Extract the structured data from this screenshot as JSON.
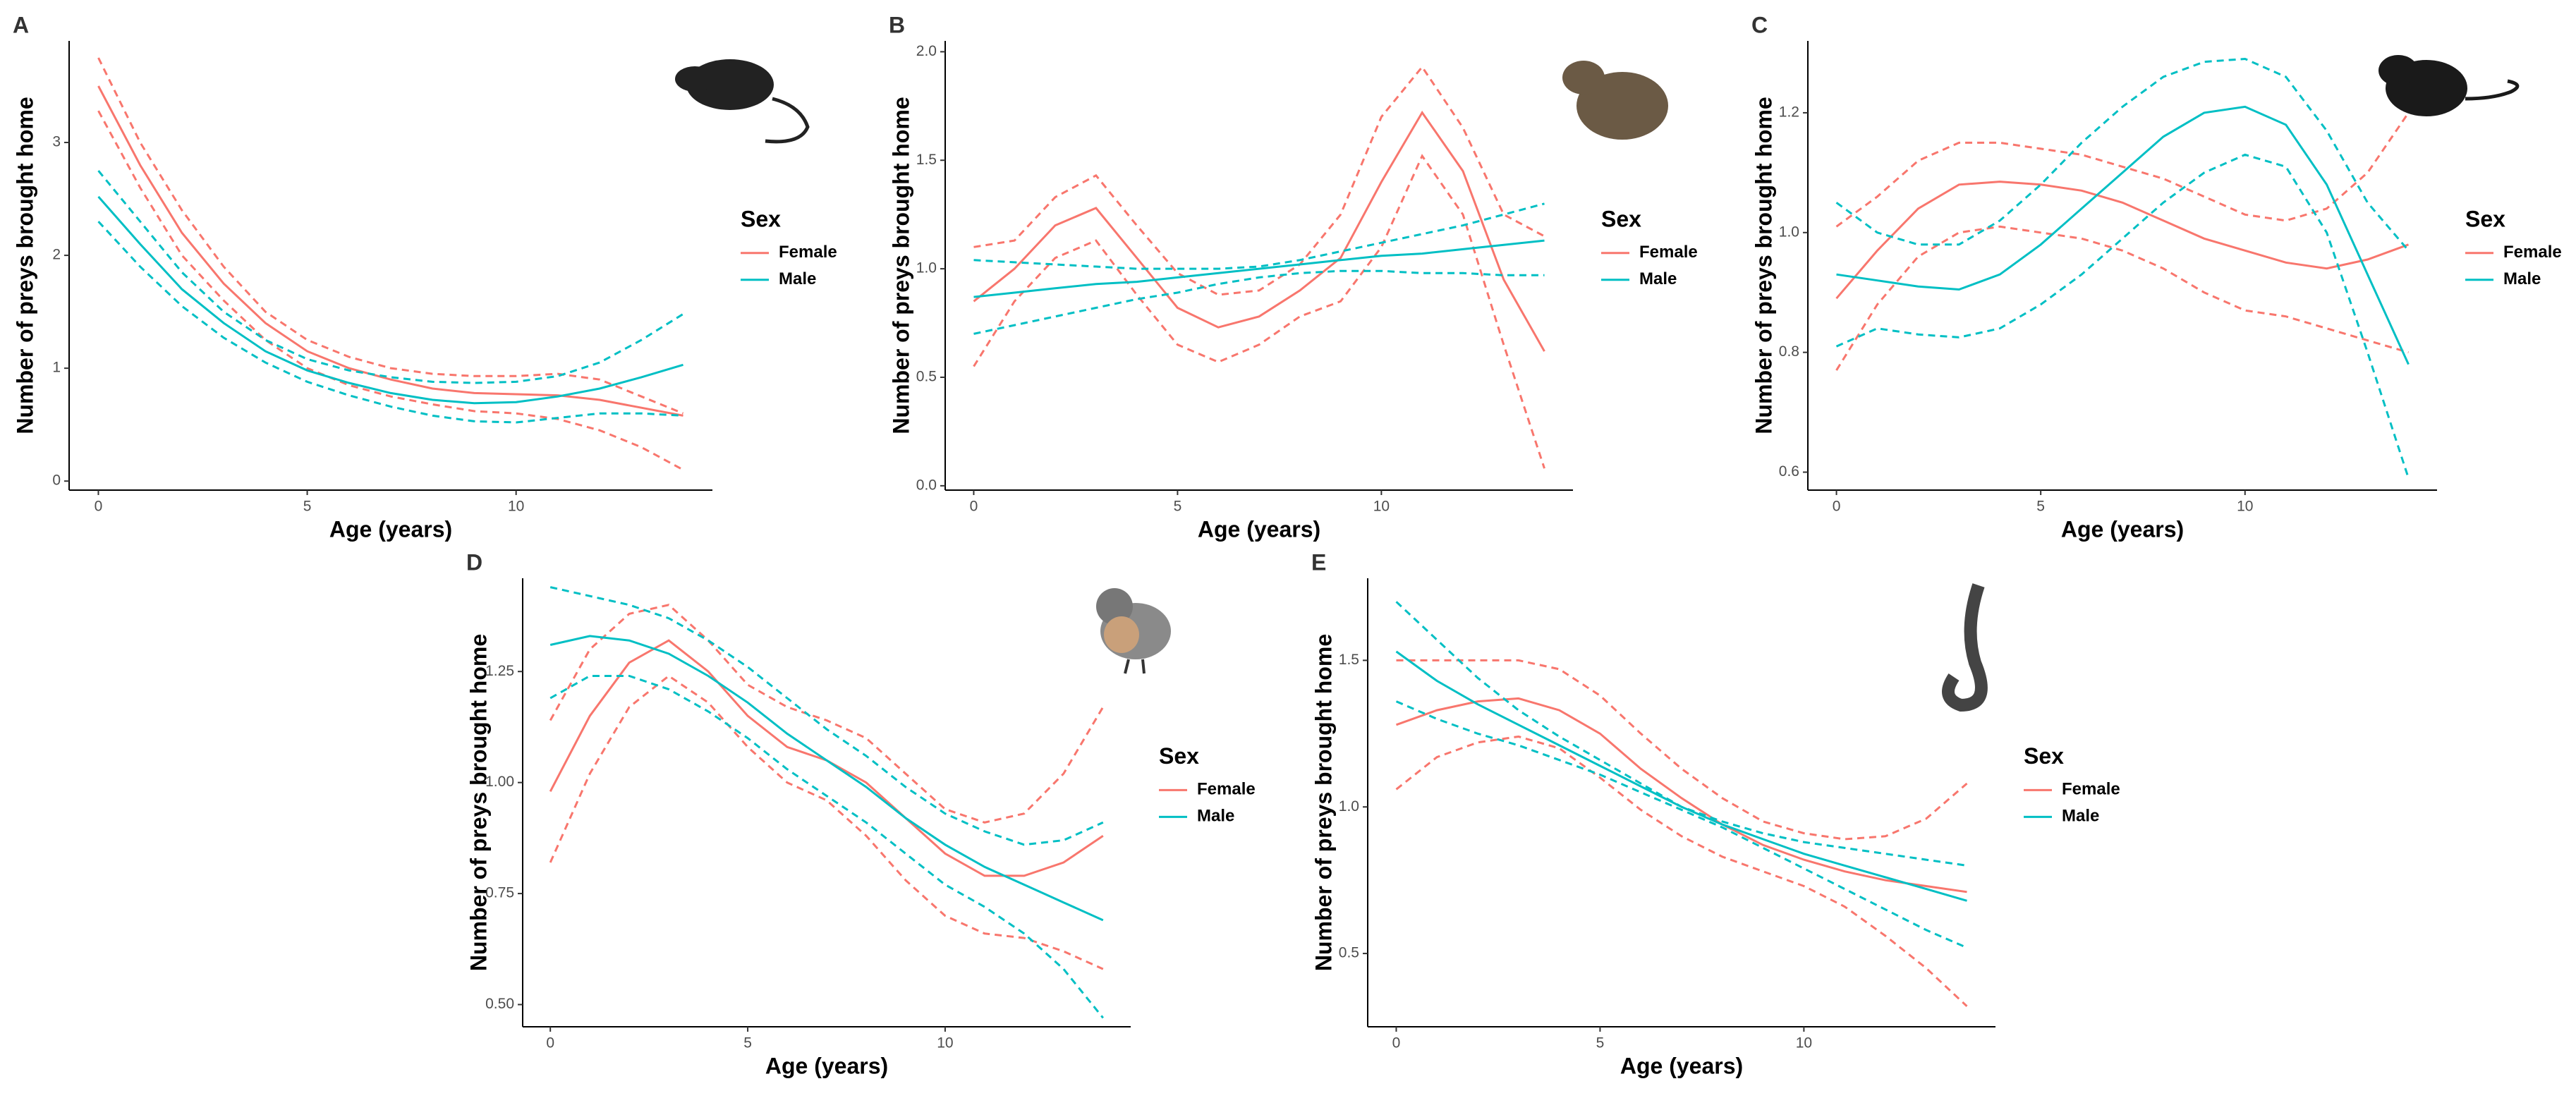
{
  "chart_data": [
    {
      "type": "line",
      "panel": "A",
      "x_label": "Age (years)",
      "y_label": "Number of preys brought home",
      "legend_title": "Sex",
      "x": [
        0,
        1,
        2,
        3,
        4,
        5,
        6,
        7,
        8,
        9,
        10,
        11,
        12,
        13,
        14
      ],
      "xlim": [
        -0.7,
        14.7
      ],
      "xticks": [
        0,
        5,
        10
      ],
      "ylim": [
        -0.08,
        3.9
      ],
      "yticks": [
        0,
        1,
        2,
        3
      ],
      "series": [
        {
          "name": "Female",
          "color": "#f8766d",
          "values": [
            3.5,
            2.8,
            2.2,
            1.75,
            1.4,
            1.15,
            1.0,
            0.9,
            0.82,
            0.78,
            0.77,
            0.76,
            0.72,
            0.65,
            0.58
          ],
          "upper": [
            3.75,
            3.0,
            2.4,
            1.9,
            1.5,
            1.25,
            1.1,
            1.0,
            0.95,
            0.93,
            0.93,
            0.95,
            0.9,
            0.75,
            0.6
          ],
          "lower": [
            3.28,
            2.6,
            2.0,
            1.6,
            1.25,
            1.0,
            0.85,
            0.75,
            0.68,
            0.62,
            0.6,
            0.55,
            0.45,
            0.3,
            0.1
          ]
        },
        {
          "name": "Male",
          "color": "#00bfc4",
          "values": [
            2.52,
            2.1,
            1.7,
            1.4,
            1.15,
            0.98,
            0.87,
            0.78,
            0.72,
            0.69,
            0.7,
            0.75,
            0.82,
            0.92,
            1.03
          ],
          "upper": [
            2.75,
            2.3,
            1.85,
            1.5,
            1.25,
            1.08,
            0.98,
            0.92,
            0.88,
            0.87,
            0.88,
            0.93,
            1.05,
            1.25,
            1.48
          ],
          "lower": [
            2.3,
            1.9,
            1.55,
            1.27,
            1.05,
            0.88,
            0.76,
            0.66,
            0.58,
            0.53,
            0.52,
            0.56,
            0.6,
            0.6,
            0.58
          ]
        }
      ]
    },
    {
      "type": "line",
      "panel": "B",
      "x_label": "Age (years)",
      "y_label": "Number of preys brought home",
      "legend_title": "Sex",
      "x": [
        0,
        1,
        2,
        3,
        4,
        5,
        6,
        7,
        8,
        9,
        10,
        11,
        12,
        13,
        14
      ],
      "xlim": [
        -0.7,
        14.7
      ],
      "xticks": [
        0,
        5,
        10
      ],
      "ylim": [
        -0.02,
        2.05
      ],
      "yticks": [
        {
          "value": 0,
          "label": "0.0"
        },
        0.5,
        {
          "value": 1,
          "label": "1.0"
        },
        1.5,
        {
          "value": 2,
          "label": "2.0"
        }
      ],
      "series": [
        {
          "name": "Female",
          "color": "#f8766d",
          "values": [
            0.85,
            1.0,
            1.2,
            1.28,
            1.05,
            0.82,
            0.73,
            0.78,
            0.9,
            1.05,
            1.4,
            1.72,
            1.45,
            0.95,
            0.62
          ],
          "upper": [
            1.1,
            1.13,
            1.33,
            1.43,
            1.2,
            0.98,
            0.88,
            0.9,
            1.02,
            1.25,
            1.7,
            1.93,
            1.65,
            1.25,
            1.15
          ],
          "lower": [
            0.55,
            0.85,
            1.05,
            1.13,
            0.88,
            0.65,
            0.57,
            0.65,
            0.78,
            0.85,
            1.1,
            1.52,
            1.25,
            0.65,
            0.08
          ]
        },
        {
          "name": "Male",
          "color": "#00bfc4",
          "values": [
            0.87,
            0.89,
            0.91,
            0.93,
            0.94,
            0.96,
            0.98,
            1.0,
            1.02,
            1.04,
            1.06,
            1.07,
            1.09,
            1.11,
            1.13
          ],
          "upper": [
            1.04,
            1.03,
            1.02,
            1.01,
            1.0,
            1.0,
            1.0,
            1.01,
            1.04,
            1.08,
            1.12,
            1.16,
            1.2,
            1.25,
            1.3
          ],
          "lower": [
            0.7,
            0.74,
            0.78,
            0.82,
            0.86,
            0.89,
            0.93,
            0.96,
            0.98,
            0.99,
            0.99,
            0.98,
            0.98,
            0.97,
            0.97
          ]
        }
      ]
    },
    {
      "type": "line",
      "panel": "C",
      "x_label": "Age (years)",
      "y_label": "Number of preys brought home",
      "legend_title": "Sex",
      "x": [
        0,
        1,
        2,
        3,
        4,
        5,
        6,
        7,
        8,
        9,
        10,
        11,
        12,
        13,
        14
      ],
      "xlim": [
        -0.7,
        14.7
      ],
      "xticks": [
        0,
        5,
        10
      ],
      "ylim": [
        0.57,
        1.32
      ],
      "yticks": [
        0.6,
        0.8,
        {
          "value": 1,
          "label": "1.0"
        },
        1.2
      ],
      "series": [
        {
          "name": "Female",
          "color": "#f8766d",
          "values": [
            0.89,
            0.97,
            1.04,
            1.08,
            1.085,
            1.08,
            1.07,
            1.05,
            1.02,
            0.99,
            0.97,
            0.95,
            0.94,
            0.955,
            0.98
          ],
          "upper": [
            1.01,
            1.06,
            1.12,
            1.15,
            1.15,
            1.14,
            1.13,
            1.11,
            1.09,
            1.06,
            1.03,
            1.02,
            1.04,
            1.1,
            1.2
          ],
          "lower": [
            0.77,
            0.88,
            0.96,
            1.0,
            1.01,
            1.0,
            0.99,
            0.97,
            0.94,
            0.9,
            0.87,
            0.86,
            0.84,
            0.82,
            0.8
          ]
        },
        {
          "name": "Male",
          "color": "#00bfc4",
          "values": [
            0.93,
            0.92,
            0.91,
            0.905,
            0.93,
            0.98,
            1.04,
            1.1,
            1.16,
            1.2,
            1.21,
            1.18,
            1.08,
            0.93,
            0.78
          ],
          "upper": [
            1.05,
            1.0,
            0.98,
            0.98,
            1.02,
            1.08,
            1.15,
            1.21,
            1.26,
            1.285,
            1.29,
            1.26,
            1.17,
            1.05,
            0.97
          ],
          "lower": [
            0.81,
            0.84,
            0.83,
            0.825,
            0.84,
            0.88,
            0.93,
            0.99,
            1.05,
            1.1,
            1.13,
            1.11,
            1.0,
            0.8,
            0.59
          ]
        }
      ]
    },
    {
      "type": "line",
      "panel": "D",
      "x_label": "Age (years)",
      "y_label": "Number of preys brought home",
      "legend_title": "Sex",
      "x": [
        0,
        1,
        2,
        3,
        4,
        5,
        6,
        7,
        8,
        9,
        10,
        11,
        12,
        13,
        14
      ],
      "xlim": [
        -0.7,
        14.7
      ],
      "xticks": [
        0,
        5,
        10
      ],
      "ylim": [
        0.45,
        1.46
      ],
      "yticks": [
        {
          "value": 0.5,
          "label": "0.50"
        },
        0.75,
        {
          "value": 1,
          "label": "1.00"
        },
        1.25
      ],
      "series": [
        {
          "name": "Female",
          "color": "#f8766d",
          "values": [
            0.98,
            1.15,
            1.27,
            1.32,
            1.25,
            1.15,
            1.08,
            1.05,
            1.0,
            0.92,
            0.84,
            0.79,
            0.79,
            0.82,
            0.88
          ],
          "upper": [
            1.14,
            1.3,
            1.38,
            1.4,
            1.32,
            1.22,
            1.17,
            1.14,
            1.1,
            1.02,
            0.94,
            0.91,
            0.93,
            1.02,
            1.17
          ],
          "lower": [
            0.82,
            1.02,
            1.17,
            1.24,
            1.18,
            1.08,
            1.0,
            0.96,
            0.88,
            0.78,
            0.7,
            0.66,
            0.65,
            0.62,
            0.58
          ]
        },
        {
          "name": "Male",
          "color": "#00bfc4",
          "values": [
            1.31,
            1.33,
            1.32,
            1.29,
            1.24,
            1.18,
            1.11,
            1.05,
            0.99,
            0.92,
            0.86,
            0.81,
            0.77,
            0.73,
            0.69
          ],
          "upper": [
            1.44,
            1.42,
            1.4,
            1.37,
            1.32,
            1.26,
            1.19,
            1.12,
            1.06,
            0.99,
            0.93,
            0.89,
            0.86,
            0.87,
            0.91
          ],
          "lower": [
            1.19,
            1.24,
            1.24,
            1.21,
            1.16,
            1.1,
            1.03,
            0.97,
            0.91,
            0.84,
            0.77,
            0.72,
            0.66,
            0.58,
            0.47
          ]
        }
      ]
    },
    {
      "type": "line",
      "panel": "E",
      "x_label": "Age (years)",
      "y_label": "Number of preys brought home",
      "legend_title": "Sex",
      "x": [
        0,
        1,
        2,
        3,
        4,
        5,
        6,
        7,
        8,
        9,
        10,
        11,
        12,
        13,
        14
      ],
      "xlim": [
        -0.7,
        14.7
      ],
      "xticks": [
        0,
        5,
        10
      ],
      "ylim": [
        0.25,
        1.78
      ],
      "yticks": [
        0.5,
        {
          "value": 1,
          "label": "1.0"
        },
        1.5
      ],
      "series": [
        {
          "name": "Female",
          "color": "#f8766d",
          "values": [
            1.28,
            1.33,
            1.36,
            1.37,
            1.33,
            1.25,
            1.13,
            1.03,
            0.94,
            0.87,
            0.82,
            0.78,
            0.75,
            0.73,
            0.71
          ],
          "upper": [
            1.5,
            1.5,
            1.5,
            1.5,
            1.47,
            1.38,
            1.25,
            1.13,
            1.03,
            0.95,
            0.91,
            0.89,
            0.9,
            0.96,
            1.08
          ],
          "lower": [
            1.06,
            1.17,
            1.22,
            1.24,
            1.2,
            1.1,
            0.99,
            0.9,
            0.83,
            0.78,
            0.73,
            0.66,
            0.56,
            0.45,
            0.32
          ]
        },
        {
          "name": "Male",
          "color": "#00bfc4",
          "values": [
            1.53,
            1.43,
            1.35,
            1.28,
            1.21,
            1.14,
            1.07,
            1.0,
            0.94,
            0.89,
            0.84,
            0.8,
            0.76,
            0.72,
            0.68
          ],
          "upper": [
            1.7,
            1.57,
            1.44,
            1.33,
            1.24,
            1.16,
            1.08,
            1.0,
            0.95,
            0.91,
            0.88,
            0.86,
            0.84,
            0.82,
            0.8
          ],
          "lower": [
            1.36,
            1.3,
            1.25,
            1.21,
            1.16,
            1.11,
            1.05,
            0.99,
            0.93,
            0.86,
            0.79,
            0.72,
            0.65,
            0.58,
            0.52
          ]
        }
      ]
    }
  ]
}
